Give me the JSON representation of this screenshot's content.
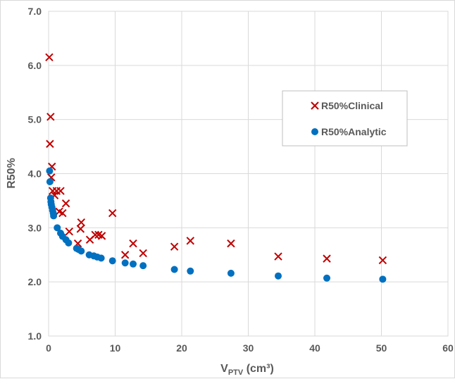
{
  "chart_data": {
    "type": "scatter",
    "xlabel_main": "V",
    "xlabel_sub": "PTV",
    "xlabel_unit": " (cm³)",
    "ylabel": "R50%",
    "xlim": [
      0,
      60
    ],
    "ylim": [
      1.0,
      7.0
    ],
    "x_ticks": [
      "0",
      "10",
      "20",
      "30",
      "40",
      "50",
      "60"
    ],
    "y_ticks": [
      "1.0",
      "2.0",
      "3.0",
      "4.0",
      "5.0",
      "6.0",
      "7.0"
    ],
    "grid": true,
    "legend_position": "right",
    "series": [
      {
        "name": "R50%Clinical",
        "marker": "x",
        "color": "#c00000",
        "points": [
          [
            0.1,
            6.15
          ],
          [
            0.3,
            5.05
          ],
          [
            0.2,
            4.55
          ],
          [
            0.5,
            4.13
          ],
          [
            0.4,
            3.93
          ],
          [
            0.6,
            3.68
          ],
          [
            1.2,
            3.68
          ],
          [
            1.8,
            3.68
          ],
          [
            0.9,
            3.6
          ],
          [
            2.6,
            3.45
          ],
          [
            1.6,
            3.3
          ],
          [
            2.1,
            3.27
          ],
          [
            9.6,
            3.27
          ],
          [
            4.9,
            3.1
          ],
          [
            4.8,
            2.98
          ],
          [
            3.1,
            2.93
          ],
          [
            7.0,
            2.87
          ],
          [
            8.0,
            2.85
          ],
          [
            7.5,
            2.87
          ],
          [
            6.2,
            2.78
          ],
          [
            4.4,
            2.71
          ],
          [
            12.7,
            2.71
          ],
          [
            14.2,
            2.53
          ],
          [
            11.5,
            2.5
          ],
          [
            18.9,
            2.65
          ],
          [
            21.3,
            2.76
          ],
          [
            27.4,
            2.71
          ],
          [
            34.5,
            2.47
          ],
          [
            41.8,
            2.43
          ],
          [
            50.2,
            2.4
          ]
        ]
      },
      {
        "name": "R50%Analytic",
        "marker": "circle",
        "color": "#0070c0",
        "points": [
          [
            0.15,
            4.05
          ],
          [
            0.2,
            3.85
          ],
          [
            0.3,
            3.55
          ],
          [
            0.35,
            3.48
          ],
          [
            0.4,
            3.43
          ],
          [
            0.5,
            3.38
          ],
          [
            0.6,
            3.32
          ],
          [
            0.7,
            3.27
          ],
          [
            0.75,
            3.22
          ],
          [
            1.3,
            3.0
          ],
          [
            1.8,
            2.9
          ],
          [
            2.1,
            2.84
          ],
          [
            2.6,
            2.78
          ],
          [
            3.0,
            2.72
          ],
          [
            4.2,
            2.62
          ],
          [
            4.5,
            2.6
          ],
          [
            4.9,
            2.57
          ],
          [
            6.1,
            2.5
          ],
          [
            6.8,
            2.48
          ],
          [
            7.3,
            2.46
          ],
          [
            7.9,
            2.44
          ],
          [
            9.6,
            2.39
          ],
          [
            11.5,
            2.35
          ],
          [
            12.7,
            2.33
          ],
          [
            14.2,
            2.3
          ],
          [
            18.9,
            2.23
          ],
          [
            21.3,
            2.2
          ],
          [
            27.4,
            2.16
          ],
          [
            34.5,
            2.11
          ],
          [
            41.8,
            2.07
          ],
          [
            50.2,
            2.05
          ]
        ]
      }
    ]
  }
}
